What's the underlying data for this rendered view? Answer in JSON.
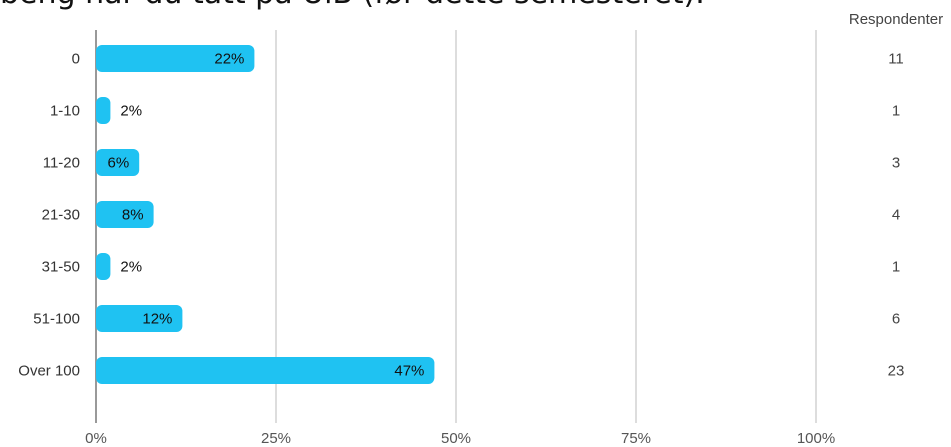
{
  "title": "beng når du tatt på UiB (før dette semesteret).",
  "chart_data": {
    "type": "bar",
    "orientation": "horizontal",
    "categories": [
      "0",
      "1-10",
      "11-20",
      "21-30",
      "31-50",
      "51-100",
      "Over 100"
    ],
    "values": [
      22,
      2,
      6,
      8,
      2,
      12,
      47
    ],
    "value_labels": [
      "22%",
      "2%",
      "6%",
      "8%",
      "2%",
      "12%",
      "47%"
    ],
    "respondents_header": "Respondenter",
    "respondents": [
      "11",
      "1",
      "3",
      "4",
      "1",
      "6",
      "23"
    ],
    "xticks": [
      "0%",
      "25%",
      "50%",
      "75%",
      "100%"
    ],
    "xlim": [
      0,
      100
    ],
    "grid": true,
    "bar_color": "#1fc2f2",
    "grid_color": "#bbbbbb"
  }
}
